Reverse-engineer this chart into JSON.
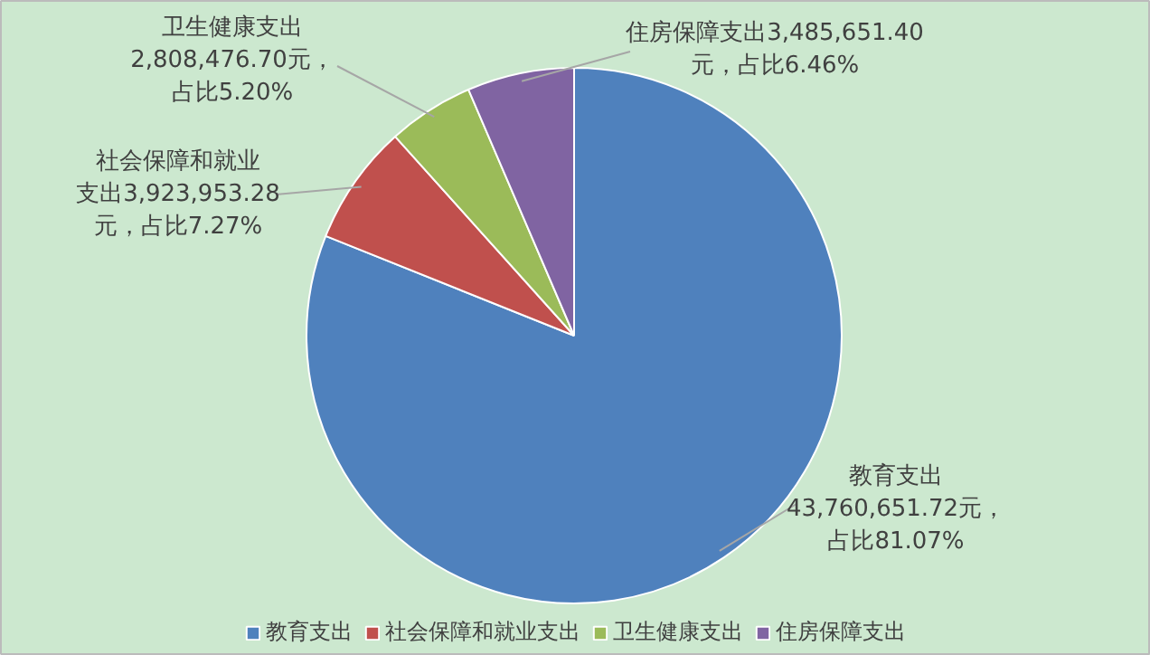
{
  "chart_data": {
    "type": "pie",
    "categories": [
      "教育支出",
      "社会保障和就业支出",
      "卫生健康支出",
      "住房保障支出"
    ],
    "values": [
      43760651.72,
      3923953.28,
      2808476.7,
      3485651.4
    ],
    "colors": [
      "#4f81bd",
      "#c0504d",
      "#9bbb59",
      "#8064a2"
    ],
    "value_labels": [
      "教育支出43,760,651.72元，占比81.07%",
      "社会保障和就业支出3,923,953.28元，占比7.27%",
      "卫生健康支出2,808,476.70元，占比5.20%",
      "住房保障支出3,485,651.40元，占比6.46%"
    ],
    "legend": "bottom"
  }
}
